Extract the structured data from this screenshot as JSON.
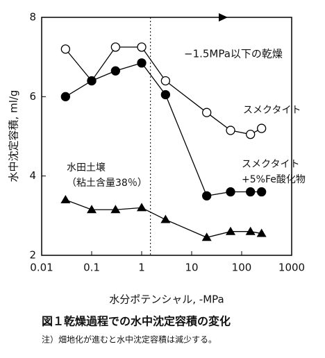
{
  "chart_data": {
    "type": "line",
    "xlabel": "水分ポテンシャル, -MPa",
    "ylabel": "水中沈定容積, ml/g",
    "caption": "図１乾燥過程での水中沈定容積の変化",
    "note": "注）畑地化が進むと水中沈定容積は減少する。",
    "annotation": "−1.5MPa以下の乾燥",
    "vline_x": 1.5,
    "xscale": "log",
    "xlim": [
      0.01,
      1000
    ],
    "xticks": [
      0.01,
      0.1,
      1,
      10,
      100,
      1000
    ],
    "ylim": [
      2,
      8
    ],
    "yticks": [
      2,
      4,
      6,
      8
    ],
    "series": [
      {
        "name": "スメクタイト",
        "color": "#000000",
        "marker": "open-circle",
        "x": [
          0.03,
          0.1,
          0.3,
          1,
          3,
          20,
          60,
          150,
          250
        ],
        "values": [
          7.2,
          6.4,
          7.25,
          7.25,
          6.4,
          5.6,
          5.15,
          5.05,
          5.2
        ]
      },
      {
        "name": "スメクタイト\n+5%Fe酸化物",
        "color": "#000000",
        "marker": "filled-circle",
        "x": [
          0.03,
          0.1,
          0.3,
          1,
          3,
          20,
          60,
          150,
          250
        ],
        "values": [
          6.0,
          6.4,
          6.65,
          6.85,
          6.05,
          3.5,
          3.6,
          3.6,
          3.6
        ]
      },
      {
        "name": "水田土壌\n（粘土含量38％）",
        "color": "#000000",
        "marker": "triangle",
        "x": [
          0.03,
          0.1,
          0.3,
          1,
          3,
          20,
          60,
          150,
          250
        ],
        "values": [
          3.4,
          3.15,
          3.15,
          3.2,
          2.9,
          2.45,
          2.6,
          2.6,
          2.55
        ]
      }
    ]
  }
}
